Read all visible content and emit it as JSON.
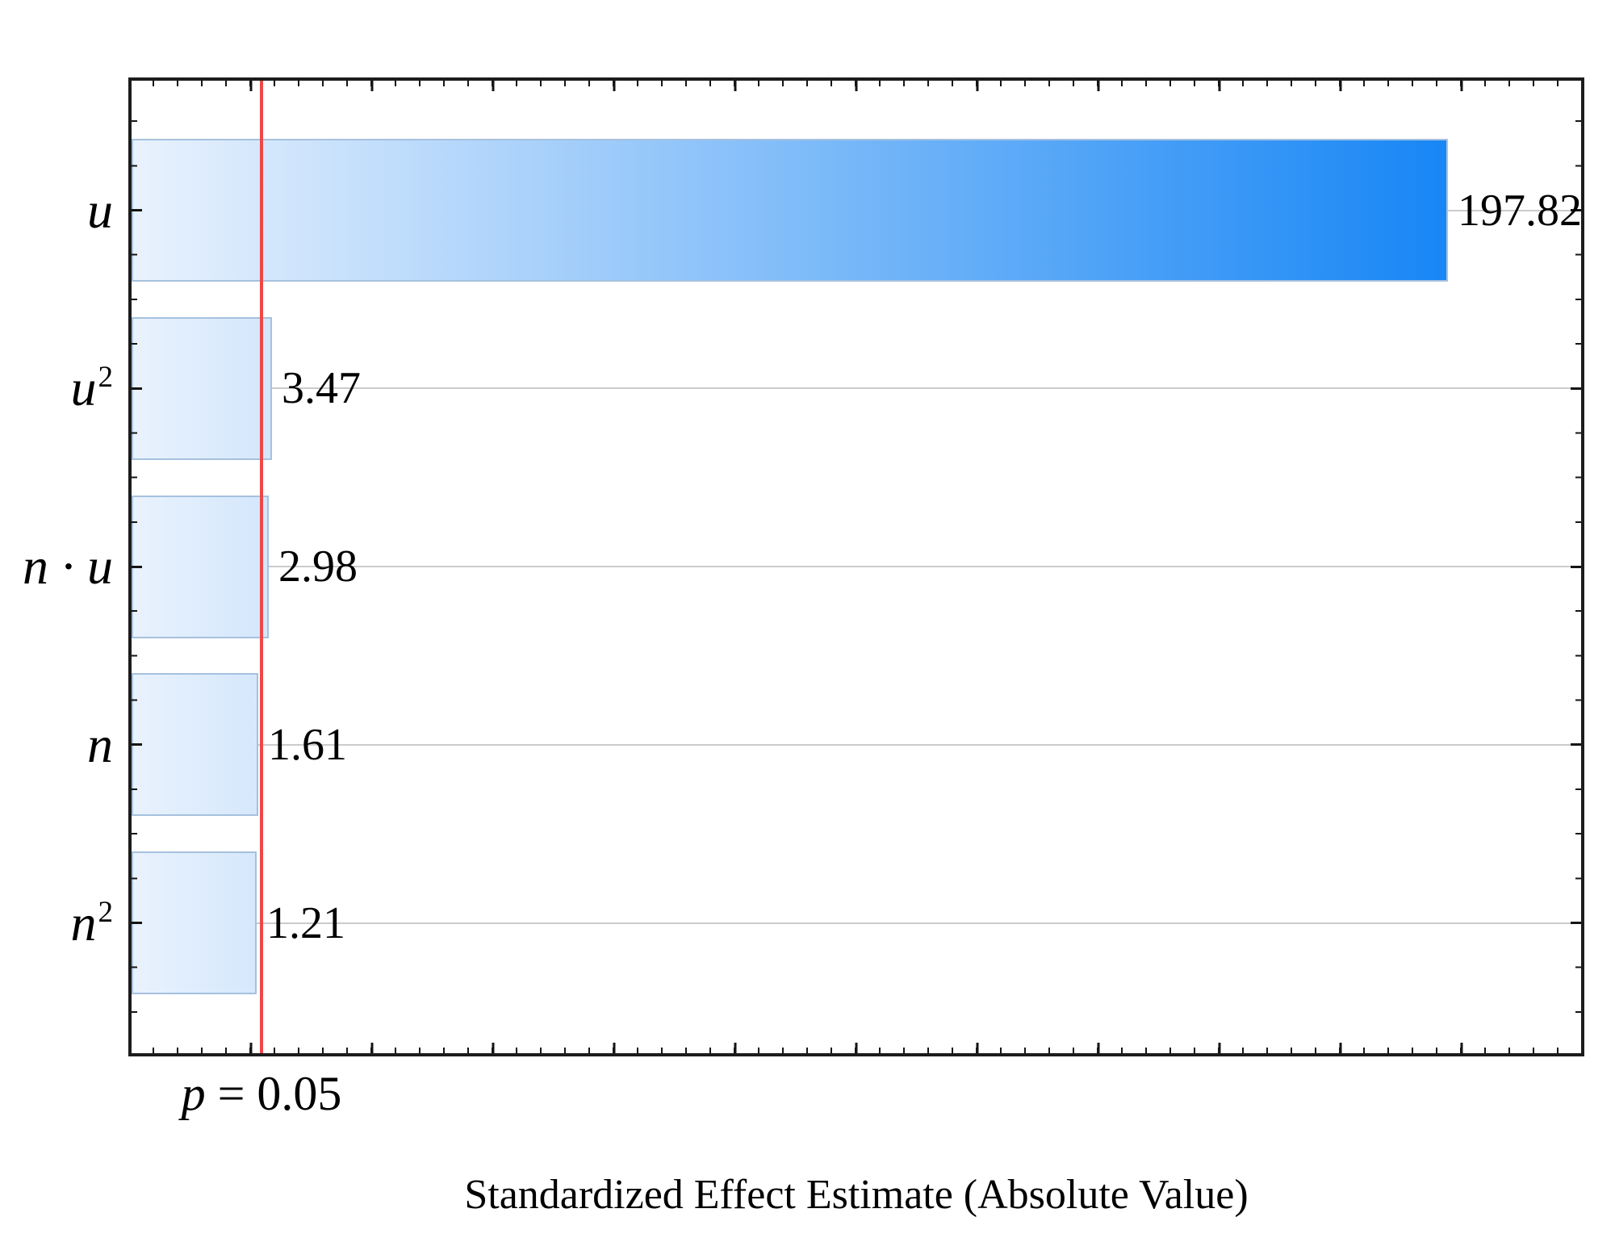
{
  "chart_data": {
    "type": "bar",
    "orientation": "horizontal",
    "title": "",
    "xlabel": "Standardized Effect Estimate (Absolute Value)",
    "ylabel": "",
    "categories": [
      "u",
      "u²",
      "n · u",
      "n",
      "n²"
    ],
    "values": [
      197.82,
      3.47,
      2.98,
      1.61,
      1.21
    ],
    "bars": [
      {
        "id": "u",
        "term": "u",
        "sup": "",
        "value": 197.82,
        "value_label": "197.82",
        "end_frac": 0.908
      },
      {
        "id": "u2",
        "term": "u",
        "sup": "2",
        "value": 3.47,
        "value_label": "3.47",
        "end_frac": 0.0969
      },
      {
        "id": "n-u",
        "term": "n · u",
        "sup": "",
        "value": 2.98,
        "value_label": "2.98",
        "end_frac": 0.0947
      },
      {
        "id": "n",
        "term": "n",
        "sup": "",
        "value": 1.61,
        "value_label": "1.61",
        "end_frac": 0.0874
      },
      {
        "id": "n2",
        "term": "n",
        "sup": "2",
        "value": 1.21,
        "value_label": "1.21",
        "end_frac": 0.0863
      }
    ],
    "significance_line": {
      "p_var": "p",
      "p_rest": " = 0.05",
      "p_value": 0.05,
      "frac": 0.0894
    },
    "axis_tick_labels": "none",
    "gridlines": "horizontal-at-category-centers",
    "legend": "none"
  },
  "colors": {
    "bar_gradient_start": "#e9f2fd",
    "bar_gradient_end": "#1786f5",
    "bar_border": "#a6c1de",
    "significance_line": "#ee4747",
    "gridline": "#cbcbcb",
    "axis": "#1c1c1c",
    "text": "#000000"
  }
}
